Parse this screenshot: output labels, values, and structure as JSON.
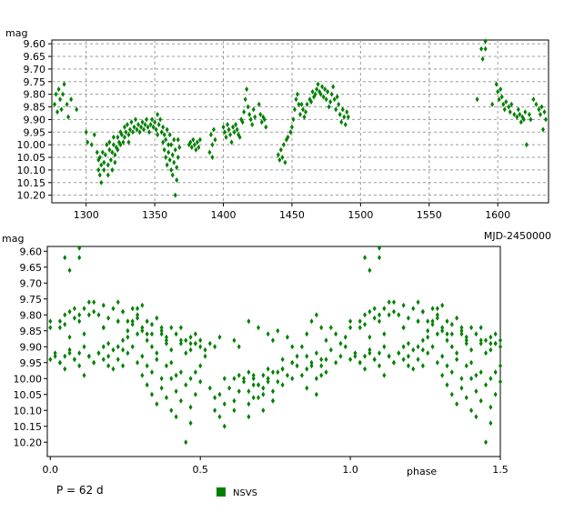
{
  "chart_data": [
    {
      "id": "top",
      "type": "scatter",
      "ylabel": "mag",
      "xlabel": "MJD-2450000",
      "xlim": [
        1275,
        1637
      ],
      "ylim": [
        10.23,
        9.585
      ],
      "y_inverted": true,
      "grid": true,
      "marker_color": "#008000",
      "x_ticks": [
        1300,
        1350,
        1400,
        1450,
        1500,
        1550,
        1600
      ],
      "y_ticks": [
        9.6,
        9.65,
        9.7,
        9.75,
        9.8,
        9.85,
        9.9,
        9.95,
        10.0,
        10.05,
        10.1,
        10.15,
        10.2
      ],
      "x_tick_labels": [
        "1300",
        "1350",
        "1400",
        "1450",
        "1500",
        "1550",
        "1600"
      ],
      "y_tick_labels": [
        "9.60",
        "9.65",
        "9.70",
        "9.75",
        "9.80",
        "9.85",
        "9.90",
        "9.95",
        "10.00",
        "10.05",
        "10.10",
        "10.15",
        "10.20"
      ],
      "series": [
        {
          "name": "NSVS",
          "points": [
            [
              1277,
              9.84
            ],
            [
              1278,
              9.8
            ],
            [
              1279,
              9.87
            ],
            [
              1280,
              9.78
            ],
            [
              1281,
              9.82
            ],
            [
              1282,
              9.86
            ],
            [
              1283,
              9.8
            ],
            [
              1284,
              9.76
            ],
            [
              1286,
              9.84
            ],
            [
              1287,
              9.89
            ],
            [
              1289,
              9.82
            ],
            [
              1293,
              9.86
            ],
            [
              1300,
              9.95
            ],
            [
              1301,
              9.99
            ],
            [
              1304,
              10.0
            ],
            [
              1306,
              9.96
            ],
            [
              1308,
              10.03
            ],
            [
              1309,
              10.06
            ],
            [
              1309,
              10.1
            ],
            [
              1310,
              10.05
            ],
            [
              1310,
              10.12
            ],
            [
              1311,
              10.08
            ],
            [
              1311,
              10.15
            ],
            [
              1312,
              10.03
            ],
            [
              1313,
              10.1
            ],
            [
              1313,
              10.07
            ],
            [
              1314,
              10.04
            ],
            [
              1315,
              10.0
            ],
            [
              1316,
              10.12
            ],
            [
              1316,
              10.08
            ],
            [
              1317,
              10.02
            ],
            [
              1317,
              9.99
            ],
            [
              1318,
              10.06
            ],
            [
              1319,
              10.03
            ],
            [
              1319,
              10.1
            ],
            [
              1320,
              10.0
            ],
            [
              1320,
              9.97
            ],
            [
              1321,
              10.04
            ],
            [
              1321,
              10.07
            ],
            [
              1322,
              10.01
            ],
            [
              1323,
              9.97
            ],
            [
              1323,
              10.02
            ],
            [
              1324,
              9.99
            ],
            [
              1325,
              9.95
            ],
            [
              1325,
              10.0
            ],
            [
              1326,
              9.96
            ],
            [
              1327,
              9.99
            ],
            [
              1328,
              9.93
            ],
            [
              1328,
              9.97
            ],
            [
              1329,
              9.95
            ],
            [
              1330,
              9.92
            ],
            [
              1331,
              9.96
            ],
            [
              1331,
              9.99
            ],
            [
              1332,
              9.94
            ],
            [
              1333,
              9.91
            ],
            [
              1334,
              9.95
            ],
            [
              1335,
              9.93
            ],
            [
              1336,
              9.9
            ],
            [
              1337,
              9.94
            ],
            [
              1338,
              9.92
            ],
            [
              1339,
              9.95
            ],
            [
              1340,
              9.93
            ],
            [
              1341,
              9.91
            ],
            [
              1342,
              9.94
            ],
            [
              1343,
              9.92
            ],
            [
              1344,
              9.9
            ],
            [
              1345,
              9.93
            ],
            [
              1346,
              9.95
            ],
            [
              1347,
              9.92
            ],
            [
              1348,
              9.9
            ],
            [
              1349,
              9.93
            ],
            [
              1350,
              9.91
            ],
            [
              1351,
              9.94
            ],
            [
              1352,
              9.96
            ],
            [
              1352,
              9.88
            ],
            [
              1353,
              9.92
            ],
            [
              1354,
              9.9
            ],
            [
              1355,
              9.95
            ],
            [
              1356,
              9.99
            ],
            [
              1356,
              9.93
            ],
            [
              1357,
              10.02
            ],
            [
              1357,
              9.96
            ],
            [
              1358,
              10.05
            ],
            [
              1358,
              9.98
            ],
            [
              1359,
              10.08
            ],
            [
              1359,
              9.94
            ],
            [
              1360,
              10.03
            ],
            [
              1360,
              10.0
            ],
            [
              1361,
              9.96
            ],
            [
              1361,
              10.06
            ],
            [
              1362,
              10.1
            ],
            [
              1362,
              10.0
            ],
            [
              1363,
              10.04
            ],
            [
              1363,
              10.12
            ],
            [
              1364,
              9.98
            ],
            [
              1364,
              10.07
            ],
            [
              1365,
              10.2
            ],
            [
              1365,
              10.02
            ],
            [
              1366,
              10.09
            ],
            [
              1366,
              10.14
            ],
            [
              1367,
              10.05
            ],
            [
              1367,
              9.98
            ],
            [
              1368,
              10.01
            ],
            [
              1375,
              10.0
            ],
            [
              1376,
              9.99
            ],
            [
              1377,
              10.01
            ],
            [
              1378,
              9.98
            ],
            [
              1379,
              10.0
            ],
            [
              1380,
              10.02
            ],
            [
              1381,
              9.99
            ],
            [
              1382,
              10.01
            ],
            [
              1383,
              9.98
            ],
            [
              1390,
              10.03
            ],
            [
              1391,
              9.96
            ],
            [
              1392,
              10.05
            ],
            [
              1392,
              10.0
            ],
            [
              1393,
              9.94
            ],
            [
              1394,
              9.98
            ],
            [
              1400,
              9.93
            ],
            [
              1401,
              9.95
            ],
            [
              1402,
              9.97
            ],
            [
              1403,
              9.92
            ],
            [
              1404,
              9.94
            ],
            [
              1405,
              9.96
            ],
            [
              1406,
              9.99
            ],
            [
              1407,
              9.93
            ],
            [
              1408,
              9.95
            ],
            [
              1409,
              9.92
            ],
            [
              1410,
              9.94
            ],
            [
              1411,
              9.96
            ],
            [
              1412,
              9.97
            ],
            [
              1413,
              9.9
            ],
            [
              1414,
              9.91
            ],
            [
              1415,
              9.87
            ],
            [
              1416,
              9.82
            ],
            [
              1417,
              9.78
            ],
            [
              1418,
              9.85
            ],
            [
              1419,
              9.88
            ],
            [
              1420,
              9.9
            ],
            [
              1421,
              9.92
            ],
            [
              1422,
              9.86
            ],
            [
              1423,
              9.89
            ],
            [
              1426,
              9.84
            ],
            [
              1427,
              9.88
            ],
            [
              1428,
              9.91
            ],
            [
              1429,
              9.89
            ],
            [
              1430,
              9.9
            ],
            [
              1431,
              9.93
            ],
            [
              1440,
              10.04
            ],
            [
              1441,
              10.06
            ],
            [
              1442,
              10.02
            ],
            [
              1443,
              10.05
            ],
            [
              1444,
              10.0
            ],
            [
              1445,
              10.07
            ],
            [
              1446,
              9.98
            ],
            [
              1447,
              9.97
            ],
            [
              1449,
              9.95
            ],
            [
              1450,
              9.93
            ],
            [
              1451,
              9.9
            ],
            [
              1452,
              9.86
            ],
            [
              1453,
              9.82
            ],
            [
              1454,
              9.8
            ],
            [
              1455,
              9.84
            ],
            [
              1456,
              9.88
            ],
            [
              1457,
              9.84
            ],
            [
              1458,
              9.86
            ],
            [
              1459,
              9.89
            ],
            [
              1460,
              9.87
            ],
            [
              1461,
              9.84
            ],
            [
              1463,
              9.82
            ],
            [
              1464,
              9.83
            ],
            [
              1465,
              9.79
            ],
            [
              1466,
              9.81
            ],
            [
              1467,
              9.8
            ],
            [
              1468,
              9.78
            ],
            [
              1469,
              9.76
            ],
            [
              1470,
              9.79
            ],
            [
              1471,
              9.8
            ],
            [
              1472,
              9.77
            ],
            [
              1473,
              9.81
            ],
            [
              1474,
              9.78
            ],
            [
              1475,
              9.82
            ],
            [
              1476,
              9.79
            ],
            [
              1477,
              9.85
            ],
            [
              1478,
              9.83
            ],
            [
              1479,
              9.8
            ],
            [
              1480,
              9.77
            ],
            [
              1481,
              9.82
            ],
            [
              1482,
              9.86
            ],
            [
              1483,
              9.81
            ],
            [
              1484,
              9.84
            ],
            [
              1485,
              9.88
            ],
            [
              1486,
              9.91
            ],
            [
              1487,
              9.86
            ],
            [
              1488,
              9.89
            ],
            [
              1489,
              9.92
            ],
            [
              1490,
              9.87
            ],
            [
              1491,
              9.89
            ],
            [
              1585,
              9.82
            ],
            [
              1588,
              9.62
            ],
            [
              1589,
              9.66
            ],
            [
              1591,
              9.59
            ],
            [
              1591,
              9.62
            ],
            [
              1596,
              9.84
            ],
            [
              1599,
              9.76
            ],
            [
              1600,
              9.79
            ],
            [
              1601,
              9.82
            ],
            [
              1602,
              9.78
            ],
            [
              1603,
              9.81
            ],
            [
              1604,
              9.84
            ],
            [
              1605,
              9.86
            ],
            [
              1606,
              9.83
            ],
            [
              1608,
              9.85
            ],
            [
              1609,
              9.87
            ],
            [
              1610,
              9.84
            ],
            [
              1612,
              9.88
            ],
            [
              1614,
              9.89
            ],
            [
              1615,
              9.86
            ],
            [
              1616,
              9.88
            ],
            [
              1617,
              9.91
            ],
            [
              1618,
              9.89
            ],
            [
              1619,
              9.9
            ],
            [
              1620,
              9.87
            ],
            [
              1621,
              10.0
            ],
            [
              1623,
              9.88
            ],
            [
              1624,
              9.9
            ],
            [
              1626,
              9.82
            ],
            [
              1628,
              9.84
            ],
            [
              1630,
              9.86
            ],
            [
              1631,
              9.88
            ],
            [
              1632,
              9.85
            ],
            [
              1633,
              9.94
            ],
            [
              1634,
              9.87
            ],
            [
              1635,
              9.9
            ]
          ]
        }
      ]
    },
    {
      "id": "bottom",
      "type": "scatter",
      "ylabel": "mag",
      "xlabel": "phase",
      "xlim": [
        -0.01,
        1.5
      ],
      "ylim": [
        10.245,
        9.585
      ],
      "y_inverted": true,
      "grid": false,
      "marker_color": "#008000",
      "x_ticks": [
        0.0,
        0.5,
        1.0,
        1.5
      ],
      "y_ticks": [
        9.6,
        9.65,
        9.7,
        9.75,
        9.8,
        9.85,
        9.9,
        9.95,
        10.0,
        10.05,
        10.1,
        10.15,
        10.2
      ],
      "x_tick_labels": [
        "0.0",
        "0.5",
        "1.0",
        "1.5"
      ],
      "y_tick_labels": [
        "9.60",
        "9.65",
        "9.70",
        "9.75",
        "9.80",
        "9.85",
        "9.90",
        "9.95",
        "10.00",
        "10.05",
        "10.10",
        "10.15",
        "10.20"
      ],
      "period": 62,
      "epoch": 1275,
      "phase_repeat": 1.5,
      "series_ref": "top"
    }
  ],
  "annotations": {
    "period_label": "P = 62 d",
    "top_ylabel": "mag",
    "bottom_ylabel": "mag",
    "top_xlabel": "MJD-2450000",
    "bottom_xlabel": "phase"
  },
  "legend": {
    "label": "NSVS",
    "color": "#008000"
  }
}
